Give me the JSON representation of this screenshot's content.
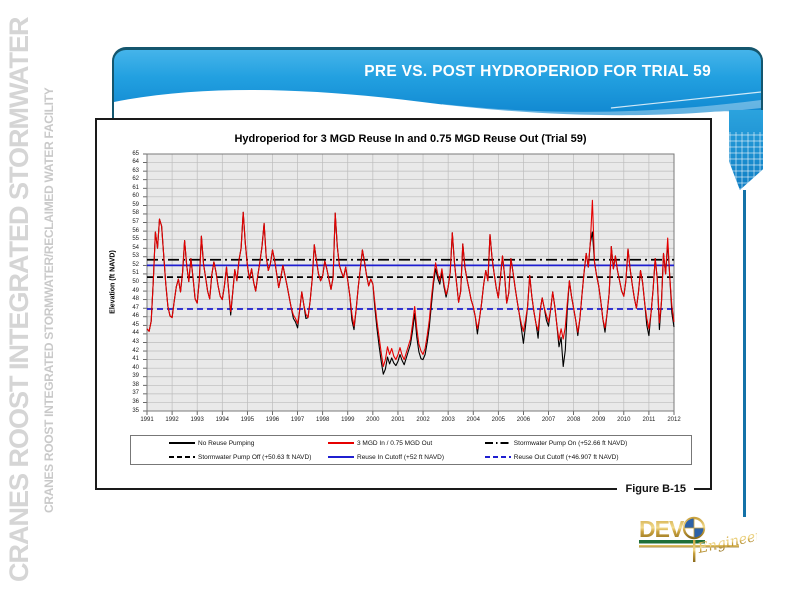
{
  "sidebar": {
    "title_large": "CRANES ROOST INTEGRATED STORMWATER",
    "title_small": "CRANES ROOST INTEGRATED STORMWATER/RECLAIMED WATER FACILITY"
  },
  "header": {
    "title": "PRE VS. POST HYDROPERIOD FOR TRIAL 59",
    "bg_top": "#45b4ea",
    "bg_bottom": "#0f85cf",
    "border_color": "#14566e",
    "text_color": "#ffffff"
  },
  "figure": {
    "caption": "Figure B-15"
  },
  "logo": {
    "name_prefix": "DEV",
    "globe_letter": "O",
    "sub": "Engineering",
    "gold": "#caa23e",
    "green": "#1f6f38",
    "globe_blue": "#2d62a8"
  },
  "chart_data": {
    "type": "line",
    "title": "Hydroperiod for 3 MGD Reuse In and 0.75 MGD Reuse Out (Trial 59)",
    "xlabel": "",
    "ylabel": "Elevation (ft NAVD)",
    "ylim": [
      35,
      65
    ],
    "y_tick_step": 1,
    "xlim": [
      1991,
      2012
    ],
    "x_tick_step": 1,
    "grid": true,
    "plot_bg": "#e9e9e9",
    "grid_color": "#bcbcbc",
    "series": [
      {
        "name": "No Reuse Pumping",
        "color": "#000000",
        "style": "solid",
        "x_start": 1991,
        "x_step": 0.0833333,
        "values": [
          44.6,
          44.3,
          45.5,
          50.2,
          55.9,
          54.0,
          57.4,
          56.6,
          53.2,
          49.8,
          47.2,
          46.1,
          45.9,
          47.8,
          49.5,
          50.4,
          48.9,
          51.2,
          54.9,
          52.0,
          50.1,
          52.8,
          50.6,
          48.1,
          47.6,
          50.3,
          55.4,
          52.2,
          50.6,
          49.0,
          48.1,
          50.9,
          52.4,
          51.2,
          49.6,
          48.4,
          48.0,
          49.6,
          51.8,
          49.2,
          46.2,
          48.8,
          51.5,
          50.2,
          52.6,
          54.0,
          58.2,
          54.6,
          52.0,
          50.4,
          51.6,
          50.0,
          49.0,
          50.8,
          52.4,
          54.2,
          56.9,
          53.0,
          51.4,
          52.2,
          53.8,
          52.6,
          51.0,
          49.4,
          50.6,
          52.0,
          50.8,
          49.6,
          48.3,
          47.0,
          45.8,
          45.4,
          44.7,
          46.8,
          48.9,
          47.4,
          45.8,
          45.9,
          47.8,
          50.4,
          54.4,
          52.6,
          51.0,
          50.2,
          50.8,
          52.5,
          51.6,
          50.4,
          49.2,
          50.6,
          58.1,
          54.2,
          52.0,
          51.2,
          50.6,
          51.8,
          50.2,
          48.4,
          45.6,
          44.5,
          46.8,
          49.4,
          51.6,
          53.8,
          52.4,
          50.8,
          49.6,
          50.4,
          49.8,
          47.0,
          44.6,
          42.6,
          40.8,
          39.3,
          39.9,
          41.3,
          40.5,
          41.2,
          40.6,
          40.3,
          40.8,
          41.6,
          40.9,
          40.4,
          41.2,
          42.0,
          42.8,
          44.4,
          46.4,
          43.6,
          41.9,
          41.1,
          41.0,
          41.6,
          43.0,
          44.8,
          47.4,
          49.9,
          51.6,
          50.5,
          49.8,
          51.2,
          49.5,
          48.3,
          49.4,
          51.2,
          55.8,
          52.4,
          50.0,
          47.7,
          49.0,
          54.5,
          51.8,
          50.4,
          49.2,
          48.0,
          47.2,
          46.0,
          44.0,
          45.8,
          47.6,
          49.8,
          51.4,
          50.2,
          55.6,
          52.8,
          51.0,
          49.4,
          48.2,
          50.6,
          53.1,
          50.8,
          47.6,
          48.8,
          52.8,
          51.2,
          49.4,
          47.8,
          46.4,
          44.7,
          42.9,
          44.9,
          47.2,
          50.8,
          48.4,
          46.6,
          45.2,
          43.5,
          46.8,
          48.2,
          47.0,
          45.6,
          44.9,
          46.8,
          48.9,
          47.2,
          45.0,
          42.5,
          43.6,
          40.2,
          42.1,
          46.9,
          50.2,
          48.4,
          47.0,
          45.6,
          43.8,
          45.8,
          48.6,
          51.2,
          53.4,
          51.8,
          54.6,
          55.9,
          52.4,
          50.8,
          49.6,
          47.8,
          45.7,
          44.2,
          46.4,
          48.8,
          54.2,
          51.6,
          53.1,
          51.4,
          50.2,
          49.0,
          48.4,
          50.2,
          53.9,
          51.6,
          49.8,
          48.2,
          47.0,
          48.8,
          51.4,
          50.0,
          47.6,
          45.0,
          43.8,
          46.4,
          49.2,
          52.8,
          50.4,
          44.5,
          47.8,
          53.4,
          51.0,
          54.6,
          50.6,
          46.4,
          44.8
        ]
      },
      {
        "name": "3 MGD In / 0.75 MGD Out",
        "color": "#e60000",
        "style": "solid",
        "x_start": 1991,
        "x_step": 0.0833333,
        "values": [
          44.6,
          44.3,
          45.5,
          50.2,
          55.9,
          54.0,
          57.4,
          56.6,
          53.2,
          49.8,
          47.2,
          46.1,
          45.9,
          47.8,
          49.5,
          50.4,
          48.9,
          51.2,
          54.9,
          52.0,
          50.1,
          52.8,
          50.6,
          48.1,
          47.6,
          50.3,
          55.4,
          52.2,
          50.6,
          49.0,
          48.1,
          50.9,
          52.4,
          51.2,
          49.6,
          48.4,
          48.0,
          49.6,
          51.8,
          49.2,
          46.6,
          48.8,
          51.5,
          50.2,
          52.6,
          54.0,
          58.2,
          54.6,
          52.0,
          50.4,
          51.6,
          50.0,
          49.0,
          50.8,
          52.4,
          54.2,
          56.9,
          53.0,
          51.4,
          52.2,
          53.8,
          52.6,
          51.0,
          49.4,
          50.6,
          52.0,
          50.8,
          49.6,
          48.3,
          47.0,
          46.2,
          45.8,
          45.2,
          46.8,
          48.9,
          47.4,
          46.3,
          45.9,
          47.8,
          50.4,
          54.4,
          52.6,
          51.0,
          50.2,
          50.8,
          52.5,
          51.6,
          50.4,
          49.2,
          50.6,
          58.1,
          54.2,
          52.0,
          51.2,
          50.6,
          51.8,
          50.2,
          48.4,
          46.3,
          44.9,
          46.8,
          49.4,
          51.6,
          53.8,
          52.4,
          50.8,
          49.6,
          50.4,
          49.8,
          47.6,
          45.4,
          43.6,
          41.8,
          40.2,
          41.0,
          42.5,
          41.6,
          42.3,
          41.4,
          41.0,
          41.6,
          42.4,
          41.5,
          41.0,
          41.8,
          42.6,
          43.4,
          45.2,
          47.2,
          44.6,
          42.8,
          42.0,
          41.6,
          42.3,
          43.8,
          45.6,
          48.2,
          50.4,
          52.3,
          51.0,
          50.2,
          51.6,
          49.8,
          48.6,
          49.4,
          51.2,
          55.8,
          52.4,
          50.0,
          47.7,
          49.0,
          54.5,
          51.8,
          50.4,
          49.2,
          48.0,
          47.2,
          46.0,
          44.6,
          45.8,
          47.6,
          49.8,
          51.4,
          50.2,
          55.6,
          52.8,
          51.0,
          49.4,
          48.2,
          50.6,
          53.1,
          50.8,
          47.6,
          48.8,
          52.8,
          51.2,
          49.4,
          47.8,
          46.4,
          45.2,
          44.3,
          45.6,
          47.2,
          50.8,
          48.4,
          46.6,
          45.2,
          44.4,
          46.8,
          48.2,
          47.0,
          46.2,
          45.4,
          46.8,
          48.9,
          47.2,
          45.0,
          43.3,
          44.6,
          43.4,
          44.8,
          47.6,
          50.2,
          48.4,
          47.0,
          45.6,
          44.2,
          45.8,
          48.6,
          51.2,
          53.4,
          51.8,
          54.6,
          59.6,
          52.4,
          50.8,
          49.6,
          47.8,
          45.7,
          44.7,
          46.4,
          48.8,
          54.2,
          51.6,
          53.1,
          51.4,
          50.2,
          49.0,
          48.4,
          50.2,
          53.9,
          51.6,
          49.8,
          48.2,
          47.0,
          48.8,
          51.4,
          50.0,
          47.6,
          45.8,
          44.6,
          46.4,
          49.2,
          52.8,
          50.4,
          45.3,
          47.8,
          53.4,
          51.0,
          55.2,
          50.6,
          47.2,
          45.4
        ]
      }
    ],
    "reference_lines": [
      {
        "name": "Stormwater Pump On",
        "value": 52.66,
        "color": "#000000",
        "style": "dash-dot"
      },
      {
        "name": "Stormwater Pump Off",
        "value": 50.63,
        "color": "#000000",
        "style": "dashed"
      },
      {
        "name": "Reuse In Cutoff",
        "value": 52,
        "color": "#1f1fd0",
        "style": "solid"
      },
      {
        "name": "Reuse Out Cutoff",
        "value": 46.907,
        "color": "#1f1fd0",
        "style": "dashed"
      }
    ],
    "legend": {
      "position": "bottom",
      "items": [
        {
          "label": "No Reuse Pumping",
          "color": "#000000",
          "dash": "solid"
        },
        {
          "label": "3 MGD In / 0.75 MGD Out",
          "color": "#e60000",
          "dash": "solid"
        },
        {
          "label": "Stormwater Pump On (+52.66 ft NAVD)",
          "color": "#000000",
          "dash": "dash-dot"
        },
        {
          "label": "Stormwater Pump Off (+50.63 ft NAVD)",
          "color": "#000000",
          "dash": "dashed"
        },
        {
          "label": "Reuse In Cutoff (+52 ft NAVD)",
          "color": "#1f1fd0",
          "dash": "solid"
        },
        {
          "label": "Reuse Out Cutoff (+46.907 ft NAVD)",
          "color": "#1f1fd0",
          "dash": "dashed"
        }
      ]
    }
  }
}
